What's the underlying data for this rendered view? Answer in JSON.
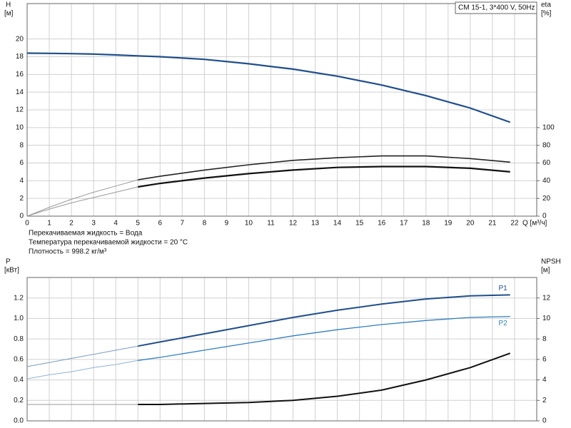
{
  "chart_data": [
    {
      "type": "line",
      "title": "CM 15-1, 3*400 V, 50Hz",
      "y_label": "H",
      "y_unit": "[м]",
      "y2_label": "eta",
      "y2_unit": "[%]",
      "x_label": "Q [м³/ч]",
      "notes": [
        "Перекачиваемая жидкость = Вода",
        "Температура перекачиваемой жидкости = 20 °C",
        "Плотность = 998.2 кг/м³"
      ],
      "xlim": [
        0,
        23
      ],
      "xticks": [
        0,
        1,
        2,
        3,
        4,
        5,
        6,
        7,
        8,
        9,
        10,
        11,
        12,
        13,
        14,
        15,
        16,
        17,
        18,
        19,
        20,
        21,
        22
      ],
      "ylim": [
        0,
        24
      ],
      "yticks": [
        0,
        2,
        4,
        6,
        8,
        10,
        12,
        14,
        16,
        18,
        20
      ],
      "y2lim": [
        0,
        240
      ],
      "y2ticks": [
        0,
        20,
        40,
        60,
        80,
        100
      ],
      "grid": true,
      "x": [
        0,
        1,
        2,
        3,
        4,
        5,
        6,
        8,
        10,
        12,
        14,
        16,
        18,
        20,
        21.8
      ],
      "series": [
        {
          "color": "#1f4e8c",
          "width": 2.2,
          "values": [
            18.4,
            18.38,
            18.35,
            18.3,
            18.2,
            18.1,
            18.0,
            17.7,
            17.2,
            16.6,
            15.8,
            14.8,
            13.6,
            12.2,
            10.6
          ]
        },
        {
          "color": "#9a9a9a",
          "width": 1,
          "axis": "y2",
          "values": [
            0,
            10,
            19,
            27,
            34,
            41,
            null,
            null,
            null,
            null,
            null,
            null,
            null,
            null,
            null
          ]
        },
        {
          "color": "#222222",
          "width": 1.6,
          "axis": "y2",
          "values": [
            null,
            null,
            null,
            null,
            null,
            41,
            45,
            52,
            58,
            63,
            66,
            68,
            68,
            65,
            61
          ]
        },
        {
          "color": "#9a9a9a",
          "width": 1,
          "axis": "y2",
          "values": [
            0,
            8,
            15,
            21,
            27,
            33,
            null,
            null,
            null,
            null,
            null,
            null,
            null,
            null,
            null
          ]
        },
        {
          "color": "#111111",
          "width": 2.2,
          "axis": "y2",
          "values": [
            null,
            null,
            null,
            null,
            null,
            33,
            37,
            43,
            48,
            52,
            55,
            56,
            56,
            54,
            50
          ]
        }
      ]
    },
    {
      "type": "line",
      "y_label": "P",
      "y_unit": "[кВт]",
      "y2_label": "NPSH",
      "y2_unit": "[м]",
      "xlim": [
        0,
        23
      ],
      "ylim": [
        0,
        1.4
      ],
      "yticks": [
        {
          "value": 0,
          "label": "0.0"
        },
        0.2,
        0.4,
        0.6,
        0.8,
        {
          "value": 1,
          "label": "1.0"
        },
        1.2
      ],
      "y2lim": [
        0,
        14
      ],
      "y2ticks": [
        0,
        2,
        4,
        6,
        8,
        10,
        12
      ],
      "grid": true,
      "x": [
        0,
        1,
        2,
        3,
        4,
        5,
        6,
        8,
        10,
        12,
        14,
        16,
        18,
        20,
        21.8
      ],
      "series": [
        {
          "color": "#7a9cc4",
          "width": 1,
          "values": [
            0.53,
            0.57,
            0.61,
            0.65,
            0.69,
            0.73,
            null,
            null,
            null,
            null,
            null,
            null,
            null,
            null,
            null
          ]
        },
        {
          "name": "P1",
          "color": "#1f4e8c",
          "width": 2,
          "values": [
            null,
            null,
            null,
            null,
            null,
            0.73,
            0.77,
            0.85,
            0.93,
            1.01,
            1.08,
            1.14,
            1.19,
            1.22,
            1.23
          ]
        },
        {
          "color": "#8fb3d6",
          "width": 1,
          "values": [
            0.41,
            0.45,
            0.48,
            0.52,
            0.55,
            0.59,
            null,
            null,
            null,
            null,
            null,
            null,
            null,
            null,
            null
          ]
        },
        {
          "name": "P2",
          "color": "#2f7fbf",
          "width": 1.3,
          "values": [
            null,
            null,
            null,
            null,
            null,
            0.59,
            0.62,
            0.69,
            0.76,
            0.83,
            0.89,
            0.94,
            0.98,
            1.01,
            1.02
          ]
        },
        {
          "color": "#9a9a9a",
          "width": 1,
          "axis": "y2",
          "values": [
            1.6,
            1.6,
            1.6,
            1.6,
            1.6,
            1.6,
            null,
            null,
            null,
            null,
            null,
            null,
            null,
            null,
            null
          ]
        },
        {
          "color": "#111111",
          "width": 2,
          "axis": "y2",
          "values": [
            null,
            null,
            null,
            null,
            null,
            1.6,
            1.6,
            1.7,
            1.8,
            2.0,
            2.4,
            3.0,
            4.0,
            5.2,
            6.6
          ]
        }
      ]
    }
  ]
}
